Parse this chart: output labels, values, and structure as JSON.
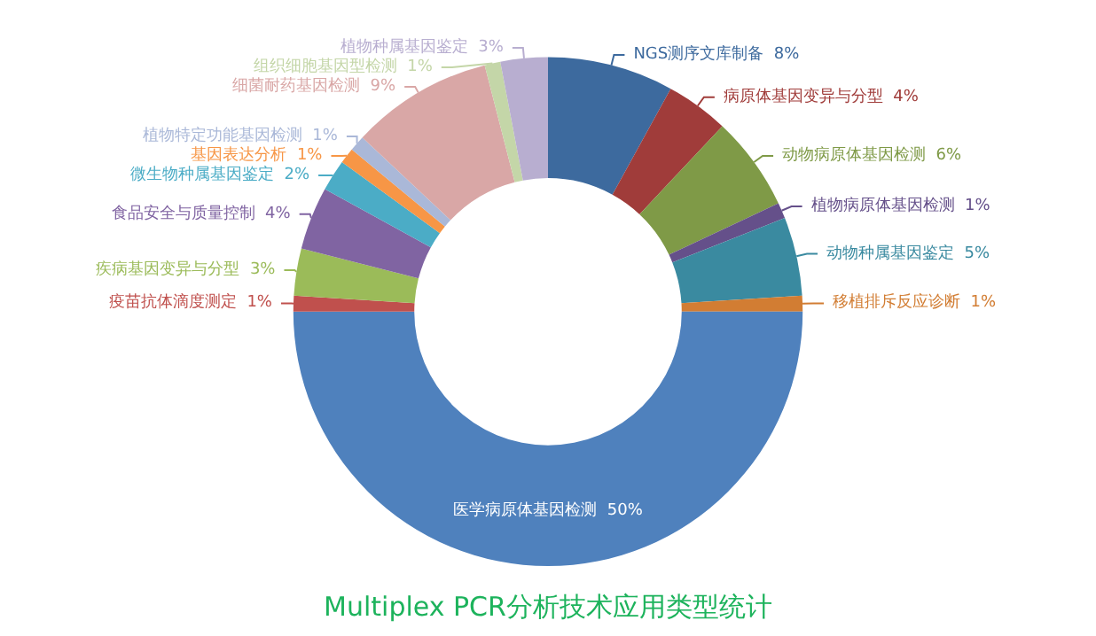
{
  "chart_data": {
    "type": "donut",
    "title": "Multiplex PCR分析技术应用类型统计",
    "categories": [
      "NGS测序文库制备",
      "病原体基因变异与分型",
      "动物病原体基因检测",
      "植物病原体基因检测",
      "动物种属基因鉴定",
      "移植排斥反应诊断",
      "医学病原体基因检测",
      "疫苗抗体滴度测定",
      "疾病基因变异与分型",
      "食品安全与质量控制",
      "微生物种属基因鉴定",
      "基因表达分析",
      "植物特定功能基因检测",
      "细菌耐药基因检测",
      "组织细胞基因型检测",
      "植物种属基因鉴定"
    ],
    "values": [
      8,
      4,
      6,
      1,
      5,
      1,
      50,
      1,
      3,
      4,
      2,
      1,
      1,
      9,
      1,
      3
    ],
    "value_labels": [
      "8%",
      "4%",
      "6%",
      "1%",
      "5%",
      "1%",
      "50%",
      "1%",
      "3%",
      "4%",
      "2%",
      "1%",
      "1%",
      "9%",
      "1%",
      "3%"
    ],
    "colors": [
      "#3d6a9e",
      "#a03c3a",
      "#7f9a47",
      "#65508a",
      "#3a8aa0",
      "#d27d33",
      "#4f81bd",
      "#c0504d",
      "#9bbb59",
      "#8064a2",
      "#4bacc6",
      "#f79646",
      "#aab8d8",
      "#d9a7a6",
      "#c4d6a8",
      "#b8aed0"
    ],
    "legend": false
  }
}
